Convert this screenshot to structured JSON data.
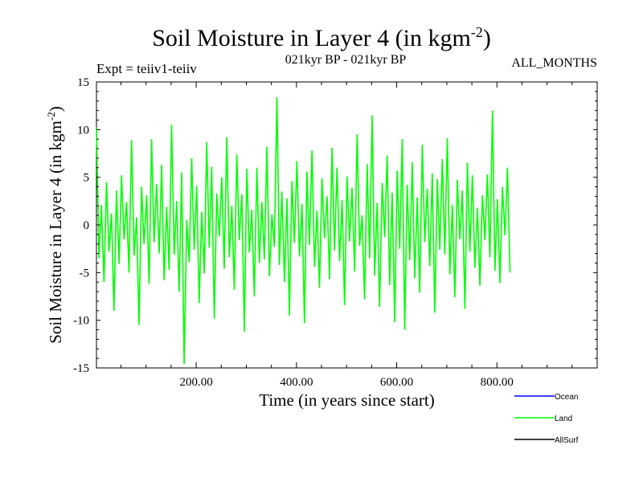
{
  "chart_data": {
    "type": "line",
    "title": "Soil Moisture in Layer 4 (in kgm",
    "title_sup": "-2",
    "title_close": ")",
    "subtitle": "021kyr BP - 021kyr BP",
    "expt_label": "Expt = teiiv1-teiiv",
    "months_label": "ALL_MONTHS",
    "xlabel": "Time (in years since start)",
    "ylabel": "Soil Moisture in Layer 4 (in kgm",
    "ylabel_sup": "-2",
    "ylabel_close": ")",
    "xlim": [
      1,
      1000
    ],
    "ylim": [
      -15,
      15
    ],
    "x_ticks": [
      200,
      400,
      600,
      800
    ],
    "x_tick_labels": [
      "200.00",
      "400.00",
      "600.00",
      "800.00"
    ],
    "y_ticks": [
      -15,
      -10,
      -5,
      0,
      5,
      10,
      15
    ],
    "y_tick_labels": [
      "-15",
      "-10",
      "-5",
      "0",
      "5",
      "10",
      "15"
    ],
    "legend_position": "bottom-right",
    "series": [
      {
        "name": "Ocean",
        "color": "#0000ff",
        "values": []
      },
      {
        "name": "Land",
        "color": "#00ff00",
        "x_start": 1,
        "x_step": 5,
        "values": [
          10.2,
          -3.5,
          2.1,
          -6.0,
          4.5,
          -2.8,
          1.2,
          -9.0,
          3.6,
          -4.1,
          5.2,
          -1.5,
          2.4,
          -5.0,
          8.9,
          -3.2,
          0.8,
          -10.5,
          4.0,
          -2.0,
          3.1,
          -6.2,
          9.0,
          -1.8,
          4.3,
          -3.0,
          6.3,
          -5.8,
          1.9,
          -4.7,
          10.5,
          -3.1,
          2.5,
          -7.0,
          5.5,
          -14.6,
          0.5,
          -3.9,
          7.0,
          -2.6,
          4.1,
          -8.2,
          1.4,
          -5.1,
          8.7,
          -2.4,
          6.1,
          -9.8,
          3.3,
          -1.2,
          5.0,
          -4.6,
          9.2,
          -3.4,
          2.0,
          -6.8,
          7.4,
          -1.6,
          3.2,
          -11.2,
          5.9,
          -2.9,
          1.6,
          -7.5,
          6.0,
          -4.0,
          2.4,
          -3.6,
          8.2,
          -5.4,
          1.1,
          -2.3,
          13.4,
          -4.2,
          3.5,
          -6.0,
          2.8,
          -9.5,
          4.6,
          -1.9,
          6.7,
          -3.3,
          2.2,
          -10.3,
          5.6,
          -2.1,
          7.8,
          -4.4,
          1.5,
          -6.6,
          4.9,
          -1.4,
          3.0,
          -5.7,
          8.1,
          -2.7,
          6.0,
          -3.8,
          2.6,
          -8.4,
          5.1,
          -1.7,
          3.9,
          -4.9,
          9.5,
          -2.2,
          1.0,
          -7.8,
          6.4,
          -3.5,
          11.5,
          -5.3,
          2.3,
          -8.6,
          4.4,
          -1.3,
          7.3,
          -6.3,
          3.4,
          -10.2,
          5.7,
          -2.5,
          9.0,
          -11.0,
          4.2,
          -3.7,
          6.6,
          -5.6,
          2.9,
          -7.1,
          8.4,
          -1.8,
          3.8,
          -4.3,
          5.4,
          -9.2,
          4.8,
          -2.6,
          6.9,
          -3.1,
          9.1,
          -5.2,
          2.1,
          -7.6,
          4.7,
          -1.5,
          3.6,
          -8.8,
          6.5,
          -2.8,
          5.2,
          -4.5,
          1.8,
          -6.4,
          3.1,
          -1.6,
          5.3,
          -3.4,
          12.0,
          -4.8,
          2.7,
          -6.1,
          4.0,
          -1.1,
          6.0,
          -5.0
        ]
      },
      {
        "name": "AllSurf",
        "color": "#000000",
        "values": []
      }
    ]
  }
}
